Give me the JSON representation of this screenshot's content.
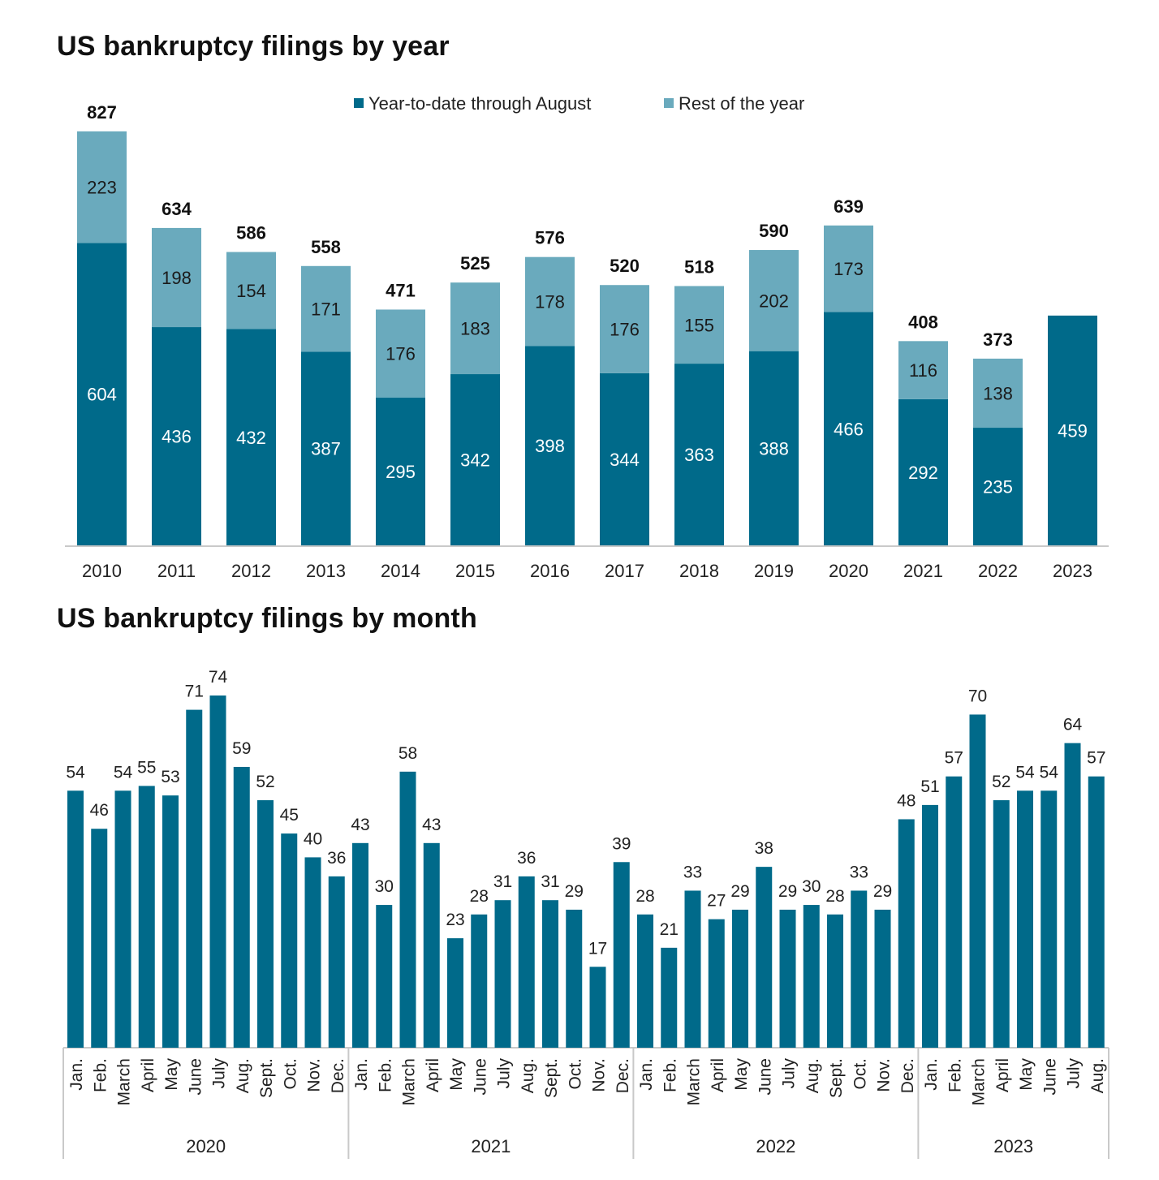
{
  "chart_data": [
    {
      "type": "bar",
      "stacked": true,
      "title": "US bankruptcy filings by year",
      "legend_position": "top-center",
      "categories": [
        "2010",
        "2011",
        "2012",
        "2013",
        "2014",
        "2015",
        "2016",
        "2017",
        "2018",
        "2019",
        "2020",
        "2021",
        "2022",
        "2023"
      ],
      "series": [
        {
          "name": "Year-to-date through August",
          "color": "#006a8a",
          "values": [
            604,
            436,
            432,
            387,
            295,
            342,
            398,
            344,
            363,
            388,
            466,
            292,
            235,
            459
          ]
        },
        {
          "name": "Rest of the year",
          "color": "#6aaabd",
          "values": [
            223,
            198,
            154,
            171,
            176,
            183,
            178,
            176,
            155,
            202,
            173,
            116,
            138,
            null
          ]
        }
      ],
      "totals": [
        827,
        634,
        586,
        558,
        471,
        525,
        576,
        520,
        518,
        590,
        639,
        408,
        373,
        null
      ],
      "ylim": [
        0,
        900
      ],
      "grid": false
    },
    {
      "type": "bar",
      "title": "US bankruptcy filings by month",
      "color": "#006a8a",
      "groups": [
        {
          "year": "2020",
          "months": [
            "Jan.",
            "Feb.",
            "March",
            "April",
            "May",
            "June",
            "July",
            "Aug.",
            "Sept.",
            "Oct.",
            "Nov.",
            "Dec."
          ],
          "values": [
            54,
            46,
            54,
            55,
            53,
            71,
            74,
            59,
            52,
            45,
            40,
            36
          ]
        },
        {
          "year": "2021",
          "months": [
            "Jan.",
            "Feb.",
            "March",
            "April",
            "May",
            "June",
            "July",
            "Aug.",
            "Sept.",
            "Oct.",
            "Nov.",
            "Dec."
          ],
          "values": [
            43,
            30,
            58,
            43,
            23,
            28,
            31,
            36,
            31,
            29,
            17,
            39
          ]
        },
        {
          "year": "2022",
          "months": [
            "Jan.",
            "Feb.",
            "March",
            "April",
            "May",
            "June",
            "July",
            "Aug.",
            "Sept.",
            "Oct.",
            "Nov.",
            "Dec."
          ],
          "values": [
            28,
            21,
            33,
            27,
            29,
            38,
            29,
            30,
            28,
            33,
            29,
            48
          ]
        },
        {
          "year": "2023",
          "months": [
            "Jan.",
            "Feb.",
            "March",
            "April",
            "May",
            "June",
            "July",
            "Aug."
          ],
          "values": [
            51,
            57,
            70,
            52,
            54,
            54,
            64,
            57
          ]
        }
      ],
      "ylim": [
        0,
        80
      ],
      "grid": false
    }
  ]
}
